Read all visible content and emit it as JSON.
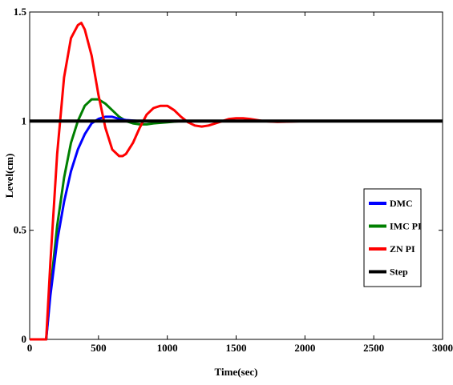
{
  "chart_data": {
    "type": "line",
    "title": "",
    "xlabel": "Time(sec)",
    "ylabel": "Level(cm)",
    "xlim": [
      0,
      3000
    ],
    "ylim": [
      0,
      1.5
    ],
    "x_ticks": [
      0,
      500,
      1000,
      1500,
      2000,
      2500,
      3000
    ],
    "x_tick_labels": [
      "0",
      "500",
      "1000",
      "1500",
      "2000",
      "2500",
      "3000"
    ],
    "y_ticks": [
      0,
      0.5,
      1,
      1.5
    ],
    "y_tick_labels": [
      "0",
      "0.5",
      "1",
      "1.5"
    ],
    "grid": false,
    "legend_position": "right",
    "series": [
      {
        "name": "DMC",
        "color": "#0000ff",
        "x": [
          0,
          120,
          150,
          200,
          250,
          300,
          350,
          400,
          450,
          500,
          550,
          600,
          650,
          700,
          800,
          1000,
          1500,
          3000
        ],
        "y": [
          0,
          0,
          0.2,
          0.45,
          0.63,
          0.77,
          0.87,
          0.94,
          0.99,
          1.01,
          1.02,
          1.02,
          1.01,
          1.005,
          1.0,
          1.0,
          1.0,
          1.0
        ]
      },
      {
        "name": "IMC PI",
        "color": "#008000",
        "x": [
          0,
          120,
          150,
          200,
          250,
          300,
          350,
          400,
          450,
          500,
          550,
          600,
          650,
          700,
          750,
          800,
          850,
          900,
          1000,
          1100,
          1200,
          1500,
          3000
        ],
        "y": [
          0,
          0,
          0.22,
          0.52,
          0.74,
          0.9,
          1.0,
          1.07,
          1.1,
          1.1,
          1.08,
          1.05,
          1.02,
          1.0,
          0.99,
          0.985,
          0.985,
          0.99,
          0.995,
          1.0,
          1.0,
          1.0,
          1.0
        ]
      },
      {
        "name": "ZN PI",
        "color": "#ff0000",
        "x": [
          0,
          120,
          150,
          200,
          250,
          300,
          350,
          375,
          400,
          450,
          500,
          550,
          600,
          650,
          675,
          700,
          750,
          800,
          850,
          900,
          950,
          1000,
          1050,
          1100,
          1150,
          1200,
          1250,
          1300,
          1350,
          1400,
          1450,
          1500,
          1550,
          1600,
          1650,
          1700,
          1750,
          1800,
          1900,
          2000,
          2200,
          3000
        ],
        "y": [
          0,
          0,
          0.35,
          0.85,
          1.2,
          1.38,
          1.44,
          1.45,
          1.42,
          1.3,
          1.12,
          0.97,
          0.87,
          0.84,
          0.84,
          0.85,
          0.9,
          0.97,
          1.03,
          1.06,
          1.07,
          1.07,
          1.05,
          1.02,
          0.995,
          0.98,
          0.975,
          0.98,
          0.99,
          1.0,
          1.01,
          1.013,
          1.013,
          1.01,
          1.005,
          1.0,
          0.998,
          0.997,
          0.998,
          1.0,
          1.0,
          1.0
        ]
      },
      {
        "name": "Step",
        "color": "#000000",
        "x": [
          0,
          3000
        ],
        "y": [
          1,
          1
        ]
      }
    ]
  }
}
